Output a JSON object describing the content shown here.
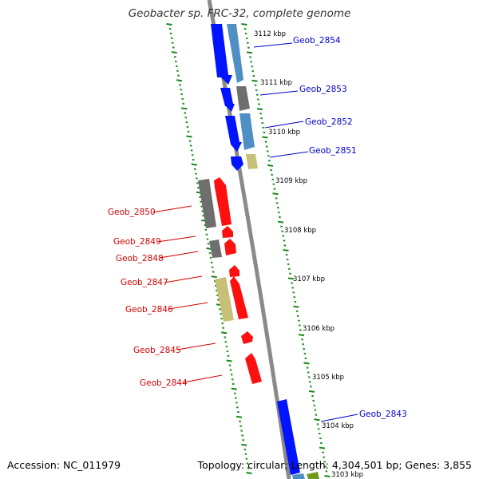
{
  "title": "Geobacter sp. FRC-32, complete genome",
  "footer": {
    "accession": "Accession: NC_011979",
    "summary": "Topology: circular; Length: 4,304,501 bp; Genes: 3,855"
  },
  "colors": {
    "backbone": "#8a8a8a",
    "tick_marks": "#1a8a1a",
    "forward_label": "#0000c8",
    "reverse_label": "#d40000",
    "cds_blue": "#0014ff",
    "cds_steelblue": "#4f8fc4",
    "cds_red": "#ff1010",
    "cds_gray": "#6e6e6e",
    "cds_khaki": "#c8bf78",
    "cds_olive": "#6f9a1e"
  },
  "kbp_labels": [
    "3112 kbp",
    "3111 kbp",
    "3110 kbp",
    "3109 kbp",
    "3108 kbp",
    "3107 kbp",
    "3106 kbp",
    "3105 kbp",
    "3104 kbp",
    "3103 kbp"
  ],
  "forward_genes": [
    "Geob_2854",
    "Geob_2853",
    "Geob_2852",
    "Geob_2851",
    "Geob_2843"
  ],
  "reverse_genes": [
    "Geob_2850",
    "Geob_2849",
    "Geob_2848",
    "Geob_2847",
    "Geob_2846",
    "Geob_2845",
    "Geob_2844"
  ]
}
